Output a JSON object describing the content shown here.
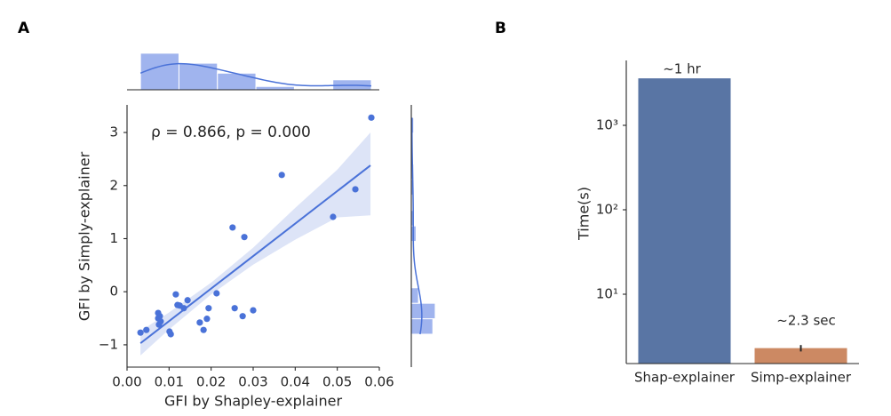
{
  "chart_data": [
    {
      "type": "scatter",
      "panel": "A",
      "x_label": "GFI by Shapley-explainer",
      "y_label": "GFI by Simply-explainer",
      "annotation": "ρ = 0.866, p = 0.000",
      "color": "#4a72d8",
      "x": [
        0.0032,
        0.0046,
        0.0074,
        0.0078,
        0.0074,
        0.008,
        0.0076,
        0.0101,
        0.0104,
        0.0116,
        0.012,
        0.0125,
        0.0135,
        0.0144,
        0.0173,
        0.0182,
        0.019,
        0.0194,
        0.0213,
        0.0251,
        0.0256,
        0.0275,
        0.0279,
        0.03,
        0.0368,
        0.049,
        0.0543,
        0.0581
      ],
      "y": [
        -0.77,
        -0.72,
        -0.4,
        -0.46,
        -0.5,
        -0.56,
        -0.62,
        -0.75,
        -0.8,
        -0.05,
        -0.25,
        -0.26,
        -0.31,
        -0.16,
        -0.58,
        -0.72,
        -0.51,
        -0.31,
        -0.03,
        1.21,
        -0.31,
        -0.46,
        1.03,
        -0.35,
        2.2,
        1.41,
        1.93,
        3.28
      ],
      "xlim": [
        0,
        0.06
      ],
      "ylim": [
        -1.42,
        3.52
      ],
      "xticks": [
        {
          "value": 0,
          "label": "0.00"
        },
        {
          "value": 0.01,
          "label": "0.01"
        },
        {
          "value": 0.02,
          "label": "0.02"
        },
        {
          "value": 0.03,
          "label": "0.03"
        },
        {
          "value": 0.04,
          "label": "0.04"
        },
        {
          "value": 0.05,
          "label": "0.05"
        },
        {
          "value": 0.06,
          "label": "0.06"
        }
      ],
      "yticks": [
        {
          "value": -1,
          "label": "−1"
        },
        0,
        1,
        2,
        3
      ],
      "fit": {
        "x": [
          0.0032,
          0.0579
        ],
        "y": [
          -0.97,
          2.38
        ]
      },
      "ci": {
        "x": [
          0.0032,
          0.01,
          0.02,
          0.03,
          0.04,
          0.05,
          0.0579
        ],
        "lower": [
          -1.2,
          -0.71,
          -0.05,
          0.51,
          0.98,
          1.4,
          1.44
        ],
        "upper": [
          -0.74,
          -0.39,
          0.17,
          0.83,
          1.58,
          2.3,
          3.0
        ],
        "color": "#dde4f7"
      },
      "x_hist": {
        "bins": [
          0.0032,
          0.01235,
          0.0215,
          0.03065,
          0.0398,
          0.04895,
          0.0581
        ],
        "counts": [
          11,
          8,
          5,
          1,
          0,
          3
        ],
        "ylim": [
          0,
          11.5
        ],
        "color": "#a0b4ee"
      },
      "y_hist": {
        "bins": [
          -0.8,
          -0.5086,
          -0.2171,
          0.0743,
          0.3657,
          0.6571,
          0.9486,
          1.24,
          1.5314,
          1.8229,
          2.1143,
          2.4057,
          2.6971,
          2.9886,
          3.28
        ],
        "counts": [
          9,
          10,
          3,
          0,
          0,
          0,
          2,
          1,
          0,
          1,
          1,
          0,
          0,
          1
        ],
        "xlim": [
          0,
          10.4
        ],
        "color": "#a0b4ee"
      }
    },
    {
      "type": "bar",
      "panel": "B",
      "y_label": "Time(s)",
      "categories": [
        "Shap-explainer",
        "Simp-explainer"
      ],
      "values": [
        3600,
        2.3
      ],
      "errors": [
        0,
        0.2
      ],
      "value_labels": [
        "~1 hr",
        "~2.3 sec"
      ],
      "colors": [
        "#5975a4",
        "#cc8963"
      ],
      "log_scale": true,
      "ylim": [
        1.51,
        5866
      ],
      "yticks": [
        {
          "value": 10,
          "label": "10¹"
        },
        {
          "value": 100,
          "label": "10²"
        },
        {
          "value": 1000,
          "label": "10³"
        }
      ]
    }
  ]
}
